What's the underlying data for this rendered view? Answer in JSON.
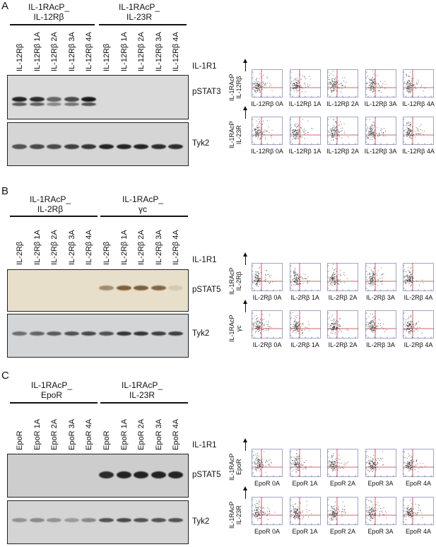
{
  "panels": [
    {
      "letter": "A",
      "groups": [
        {
          "title_line1": "IL-1RAcP_",
          "title_line2": "IL-12Rβ"
        },
        {
          "title_line1": "IL-1RAcP_",
          "title_line2": "IL-23R"
        }
      ],
      "lanes": [
        "IL-12Rβ",
        "IL-12Rβ 1A",
        "IL-12Rβ 2A",
        "IL-12Rβ 3A",
        "IL-12Rβ 4A",
        "IL-12Rβ",
        "IL-12Rβ 1A",
        "IL-12Rβ 2A",
        "IL-12Rβ 3A",
        "IL-12Rβ 4A"
      ],
      "lane_header": "IL-1R1",
      "blots": [
        "pSTAT3",
        "Tyk2"
      ],
      "flow_rows": [
        {
          "y_label_line1": "IL-1RAcP",
          "y_label_line2": "IL-12Rβ",
          "plots": [
            "IL-12Rβ 0A",
            "IL-12Rβ 1A",
            "IL-12Rβ 2A",
            "IL-12Rβ 3A",
            "IL-12Rβ 4A"
          ]
        },
        {
          "y_label_line1": "IL-1RAcP",
          "y_label_line2": "IL-23R",
          "plots": [
            "IL-12Rβ 0A",
            "IL-12Rβ 1A",
            "IL-12Rβ 2A",
            "IL-12Rβ 3A",
            "IL-12Rβ 4A"
          ]
        }
      ]
    },
    {
      "letter": "B",
      "groups": [
        {
          "title_line1": "IL-1RAcP_",
          "title_line2": "IL-2Rβ"
        },
        {
          "title_line1": "IL-1RAcP_",
          "title_line2": "γc"
        }
      ],
      "lanes": [
        "IL-2Rβ",
        "IL-2Rβ 1A",
        "IL-2Rβ 2A",
        "IL-2Rβ 3A",
        "IL-2Rβ 4A",
        "IL-2Rβ",
        "IL-2Rβ 1A",
        "IL-2Rβ 2A",
        "IL-2Rβ 3A",
        "IL-2Rβ 4A"
      ],
      "lane_header": "IL-1R1",
      "blots": [
        "pSTAT5",
        "Tyk2"
      ],
      "flow_rows": [
        {
          "y_label_line1": "IL-1RAcP",
          "y_label_line2": "IL-2Rβ",
          "plots": [
            "IL-2Rβ 0A",
            "IL-2Rβ 1A",
            "IL-2Rβ 2A",
            "IL-2Rβ 3A",
            "IL-2Rβ 4A"
          ]
        },
        {
          "y_label_line1": "IL-1RAcP",
          "y_label_line2": "γc",
          "plots": [
            "IL-2Rβ 0A",
            "IL-2Rβ 1A",
            "IL-2Rβ 2A",
            "IL-2Rβ 3A",
            "IL-2Rβ 4A"
          ]
        }
      ]
    },
    {
      "letter": "C",
      "groups": [
        {
          "title_line1": "IL-1RAcP_",
          "title_line2": "EpoR"
        },
        {
          "title_line1": "IL-1RAcP_",
          "title_line2": "IL-23R"
        }
      ],
      "lanes": [
        "EpoR",
        "EpoR 1A",
        "EpoR 2A",
        "EpoR 3A",
        "EpoR 4A",
        "EpoR",
        "EpoR 1A",
        "EpoR 2A",
        "EpoR 3A",
        "EpoR 4A"
      ],
      "lane_header": "IL-1R1",
      "blots": [
        "pSTAT5",
        "Tyk2"
      ],
      "flow_rows": [
        {
          "y_label_line1": "IL-1RAcP",
          "y_label_line2": "EpoR",
          "plots": [
            "EpoR 0A",
            "EpoR 1A",
            "EpoR 2A",
            "EpoR 3A",
            "EpoR 4A"
          ]
        },
        {
          "y_label_line1": "IL-1RAcP",
          "y_label_line2": "IL-23R",
          "plots": [
            "EpoR 0A",
            "EpoR 1A",
            "EpoR 2A",
            "EpoR 3A",
            "EpoR 4A"
          ]
        }
      ]
    }
  ],
  "colors": {
    "blot_gray": "#d9d9d9",
    "blot_beige": "#e6ddc7",
    "blot_dark_gray": "#cfcfcf",
    "band_dark": "#1a1a1a",
    "band_brown": "#6b4a22",
    "flow_gate": "#c9303c",
    "flow_axis": "#3d4fa3",
    "flow_dots": "#222222"
  },
  "band_intensities": {
    "A_pSTAT3": [
      0.95,
      0.9,
      0.6,
      0.75,
      1.0,
      0,
      0,
      0,
      0,
      0
    ],
    "A_Tyk2": [
      0.7,
      0.75,
      0.75,
      0.8,
      0.85,
      0.95,
      0.95,
      0.95,
      0.9,
      0.9
    ],
    "B_pSTAT5": [
      0,
      0,
      0,
      0,
      0,
      0.55,
      0.85,
      0.85,
      0.8,
      0.15
    ],
    "B_Tyk2": [
      0.55,
      0.6,
      0.65,
      0.7,
      0.75,
      0.7,
      0.85,
      0.85,
      0.8,
      0.8
    ],
    "C_pSTAT5": [
      0,
      0,
      0,
      0,
      0,
      0.9,
      0.95,
      0.95,
      0.95,
      0.95
    ],
    "C_Tyk2": [
      0.35,
      0.4,
      0.35,
      0.3,
      0.4,
      0.7,
      0.75,
      0.7,
      0.7,
      0.7
    ]
  }
}
